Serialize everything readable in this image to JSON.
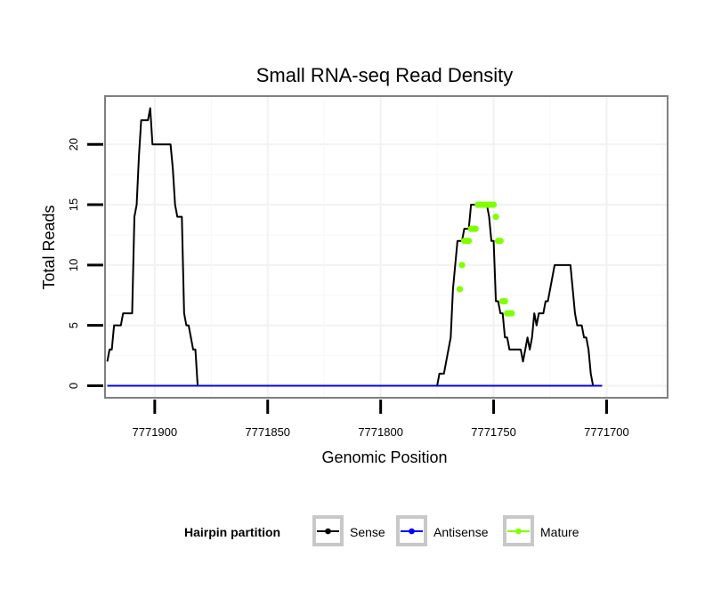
{
  "chart_data": {
    "type": "line",
    "title": "Small RNA-seq Read Density",
    "xlabel": "Genomic Position",
    "ylabel": "Total Reads",
    "x_reversed": true,
    "xlim": [
      7771922,
      7771673
    ],
    "ylim": [
      -1,
      24
    ],
    "x_ticks": [
      7771900,
      7771850,
      7771800,
      7771750,
      7771700
    ],
    "x_tick_labels": [
      "7771900",
      "7771850",
      "7771800",
      "7771750",
      "7771700"
    ],
    "y_ticks": [
      0,
      5,
      10,
      15,
      20
    ],
    "y_tick_labels": [
      "0",
      "5",
      "10",
      "15",
      "20"
    ],
    "grid": true,
    "legend": {
      "title": "Hairpin partition",
      "position": "bottom",
      "entries": [
        "Sense",
        "Antisense",
        "Mature"
      ]
    },
    "series": [
      {
        "name": "Sense",
        "color": "#000000",
        "x": [
          7771921,
          7771920,
          7771919,
          7771918,
          7771917,
          7771916,
          7771915,
          7771914,
          7771913,
          7771912,
          7771911,
          7771910,
          7771909,
          7771908,
          7771907,
          7771906,
          7771905,
          7771904,
          7771903,
          7771902,
          7771901,
          7771900,
          7771899,
          7771898,
          7771897,
          7771896,
          7771895,
          7771894,
          7771893,
          7771892,
          7771891,
          7771890,
          7771889,
          7771888,
          7771887,
          7771886,
          7771885,
          7771884,
          7771883,
          7771882,
          7771881,
          7771880,
          7771879,
          7771878,
          7771877,
          7771876,
          7771875,
          7771874,
          7771873,
          7771872,
          7771871,
          7771870,
          7771775,
          7771774,
          7771773,
          7771772,
          7771771,
          7771770,
          7771769,
          7771768,
          7771767,
          7771766,
          7771765,
          7771764,
          7771763,
          7771762,
          7771761,
          7771760,
          7771759,
          7771758,
          7771757,
          7771756,
          7771755,
          7771754,
          7771753,
          7771752,
          7771751,
          7771750,
          7771749,
          7771748,
          7771747,
          7771746,
          7771745,
          7771744,
          7771743,
          7771742,
          7771741,
          7771740,
          7771739,
          7771738,
          7771737,
          7771736,
          7771735,
          7771734,
          7771733,
          7771732,
          7771731,
          7771730,
          7771729,
          7771728,
          7771727,
          7771726,
          7771725,
          7771724,
          7771723,
          7771722,
          7771721,
          7771720,
          7771719,
          7771718,
          7771717,
          7771716,
          7771715,
          7771714,
          7771713,
          7771712,
          7771711,
          7771710,
          7771709,
          7771708,
          7771707,
          7771706,
          7771705,
          7771704,
          7771703,
          7771702
        ],
        "y": [
          2,
          3,
          3,
          5,
          5,
          5,
          5,
          6,
          6,
          6,
          6,
          6,
          14,
          15,
          19,
          22,
          22,
          22,
          22,
          23,
          20,
          20,
          20,
          20,
          20,
          20,
          20,
          20,
          20,
          18,
          15,
          14,
          14,
          14,
          6,
          5,
          5,
          4,
          3,
          3,
          0,
          0,
          0,
          0,
          0,
          0,
          0,
          0,
          0,
          0,
          0,
          0,
          0,
          1,
          1,
          1,
          2,
          3,
          4,
          8,
          10,
          12,
          12,
          12,
          13,
          13,
          13,
          15,
          15,
          15,
          15,
          15,
          15,
          15,
          15,
          14,
          12,
          12,
          7,
          7,
          6,
          6,
          4,
          4,
          3,
          3,
          3,
          3,
          3,
          3,
          2,
          3,
          4,
          3,
          4,
          6,
          5,
          6,
          6,
          6,
          7,
          7,
          8,
          9,
          10,
          10,
          10,
          10,
          10,
          10,
          10,
          10,
          8,
          6,
          5,
          5,
          5,
          4,
          4,
          3,
          1,
          0,
          0,
          0,
          0,
          0
        ]
      },
      {
        "name": "Antisense",
        "color": "#0000ff",
        "x": [
          7771921,
          7771702
        ],
        "y": [
          0,
          0
        ]
      },
      {
        "name": "Mature",
        "color": "#7fff00",
        "x": [
          7771765,
          7771764,
          7771763,
          7771762,
          7771761,
          7771760,
          7771759,
          7771758,
          7771757,
          7771756,
          7771755,
          7771754,
          7771753,
          7771752,
          7771751,
          7771750,
          7771749,
          7771748,
          7771747,
          7771746,
          7771745,
          7771744,
          7771743,
          7771742
        ],
        "y": [
          8,
          10,
          12,
          12,
          12,
          13,
          13,
          13,
          15,
          15,
          15,
          15,
          15,
          15,
          15,
          15,
          14,
          12,
          12,
          7,
          7,
          6,
          6,
          6
        ]
      }
    ]
  }
}
